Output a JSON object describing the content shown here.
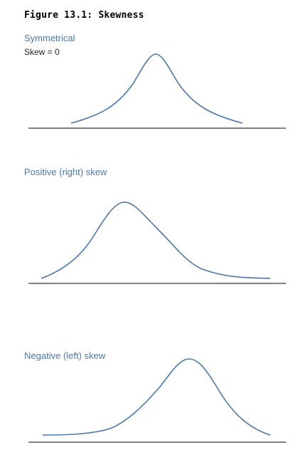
{
  "figure": {
    "title": "Figure 13.1: Skewness"
  },
  "colors": {
    "curve": "#4a78b0",
    "label": "#4a78b0",
    "baseline": "#000000"
  },
  "panels": [
    {
      "label": "Symmetrical",
      "sublabel": "Skew = 0"
    },
    {
      "label": "Positive (right) skew",
      "sublabel": ""
    },
    {
      "label": "Negative (left) skew",
      "sublabel": ""
    }
  ]
}
